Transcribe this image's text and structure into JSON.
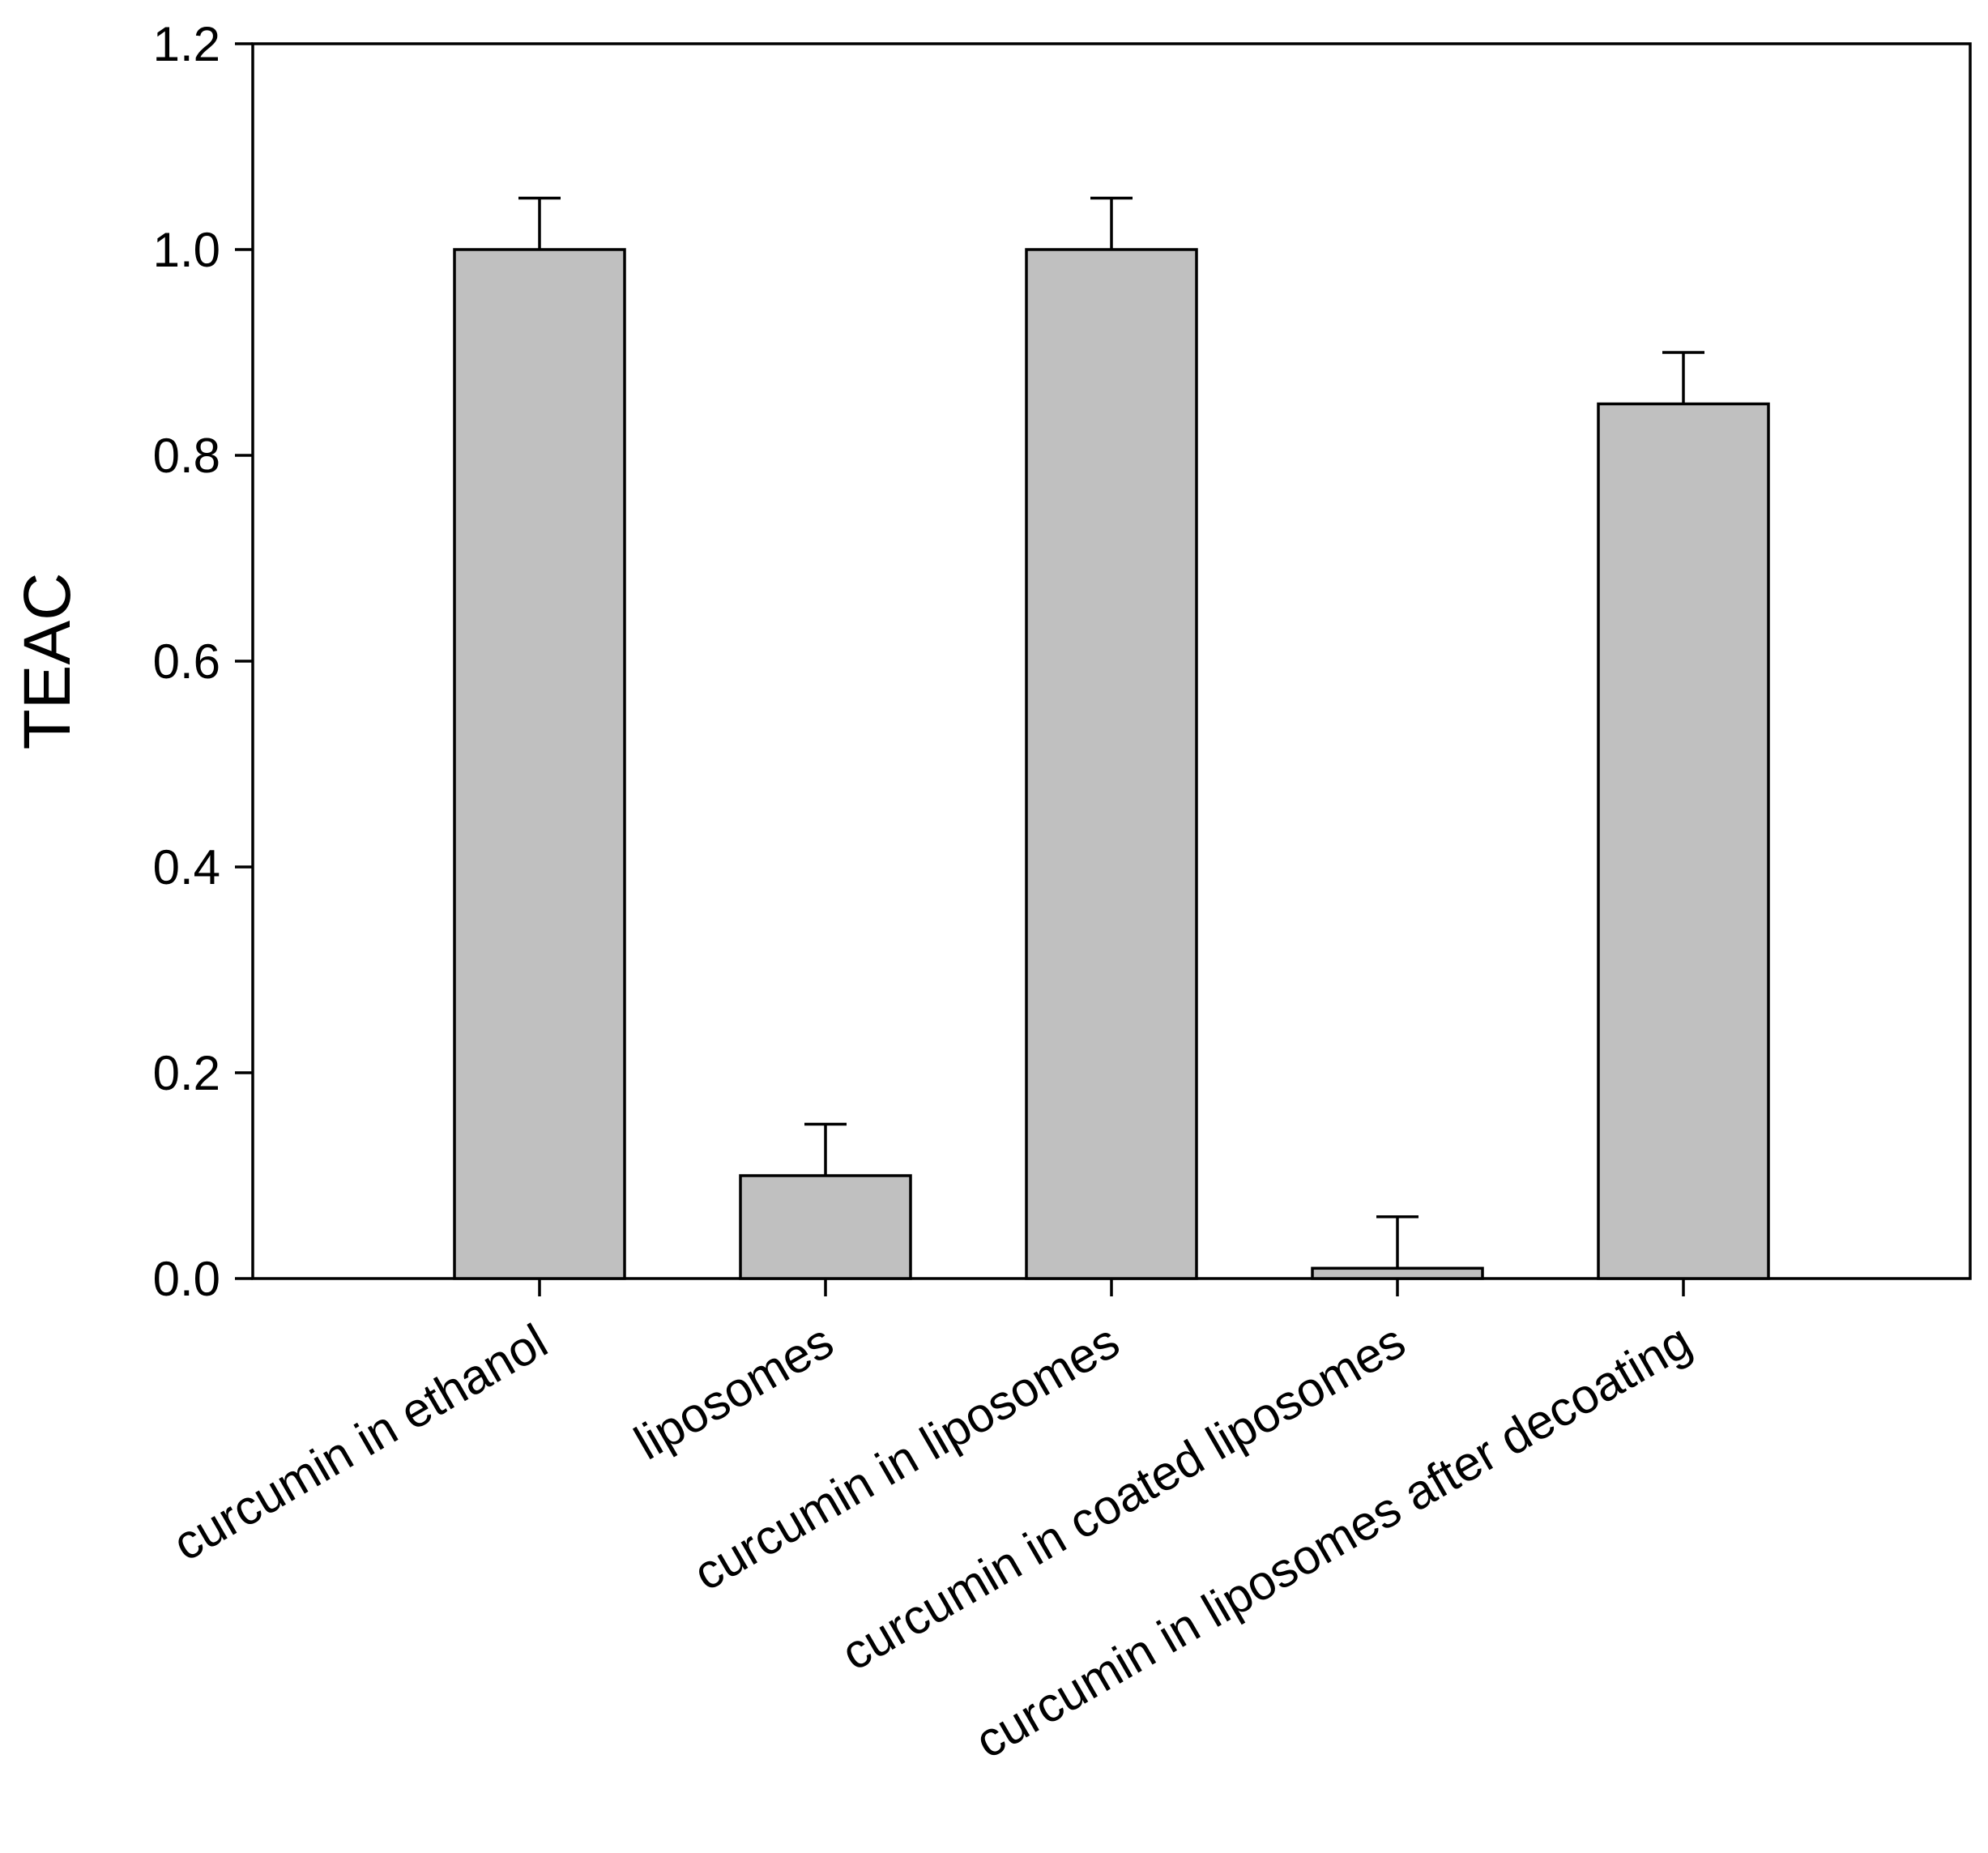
{
  "chart_data": {
    "type": "bar",
    "title": "",
    "xlabel": "",
    "ylabel": "TEAC",
    "categories": [
      "curcumin in ethanol",
      "liposomes",
      "curcumin in liposomes",
      "curcumin in coated liposomes",
      "curcumin in liposomes after decoating"
    ],
    "values": [
      1.0,
      0.1,
      1.0,
      0.01,
      0.85
    ],
    "errors": [
      0.05,
      0.05,
      0.05,
      0.05,
      0.05
    ],
    "ylim": [
      0.0,
      1.2
    ],
    "yticks": [
      "0.0",
      "0.2",
      "0.4",
      "0.6",
      "0.8",
      "1.0",
      "1.2"
    ],
    "ytick_values": [
      0.0,
      0.2,
      0.4,
      0.6,
      0.8,
      1.0,
      1.2
    ],
    "grid": false,
    "legend": "none",
    "colors": {
      "bar_fill": "#c0c0c0",
      "bar_stroke": "#000000",
      "axis": "#000000",
      "text": "#000000"
    }
  }
}
